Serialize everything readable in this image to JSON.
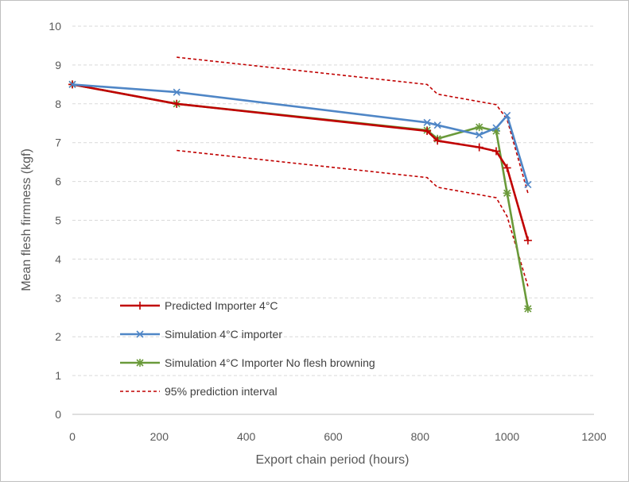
{
  "chart_data": {
    "type": "line",
    "xlabel": "Export chain period (hours)",
    "ylabel": "Mean flesh firmness (kgf)",
    "xlim": [
      0,
      1200
    ],
    "ylim": [
      0,
      10
    ],
    "x_ticks": [
      "0",
      "200",
      "400",
      "600",
      "800",
      "1000",
      "1200"
    ],
    "y_ticks": [
      "0",
      "1",
      "2",
      "3",
      "4",
      "5",
      "6",
      "7",
      "8",
      "9",
      "10"
    ],
    "grid": "horizontal dashed",
    "legend_position": "bottom-left",
    "series": [
      {
        "name": "Predicted Importer 4°C",
        "color": "#c00000",
        "marker": "plus",
        "style": "solid",
        "points": [
          [
            0,
            8.5
          ],
          [
            240,
            8.0
          ],
          [
            816,
            7.3
          ],
          [
            840,
            7.05
          ],
          [
            936,
            6.88
          ],
          [
            975,
            6.78
          ],
          [
            1000,
            6.35
          ],
          [
            1048,
            4.48
          ]
        ]
      },
      {
        "name": "Simulation 4°C importer",
        "color": "#4f86c6",
        "marker": "x",
        "style": "solid",
        "points": [
          [
            0,
            8.5
          ],
          [
            240,
            8.3
          ],
          [
            816,
            7.52
          ],
          [
            840,
            7.45
          ],
          [
            936,
            7.2
          ],
          [
            975,
            7.38
          ],
          [
            1000,
            7.7
          ],
          [
            1048,
            5.92
          ]
        ]
      },
      {
        "name": "Simulation 4°C Importer No flesh browning",
        "color": "#6a9a3a",
        "marker": "star",
        "style": "solid",
        "points": [
          [
            0,
            8.5
          ],
          [
            240,
            8.0
          ],
          [
            816,
            7.32
          ],
          [
            840,
            7.1
          ],
          [
            936,
            7.4
          ],
          [
            975,
            7.3
          ],
          [
            1000,
            5.7
          ],
          [
            1048,
            2.72
          ]
        ]
      },
      {
        "name": "95% prediction interval",
        "color": "#c00000",
        "marker": "none",
        "style": "dashed",
        "bands": [
          [
            [
              240,
              9.2
            ],
            [
              816,
              8.5
            ],
            [
              840,
              8.25
            ],
            [
              975,
              7.98
            ],
            [
              1000,
              7.6
            ],
            [
              1048,
              5.7
            ]
          ],
          [
            [
              240,
              6.8
            ],
            [
              816,
              6.1
            ],
            [
              840,
              5.85
            ],
            [
              975,
              5.58
            ],
            [
              1000,
              5.1
            ],
            [
              1048,
              3.3
            ]
          ]
        ]
      }
    ]
  }
}
